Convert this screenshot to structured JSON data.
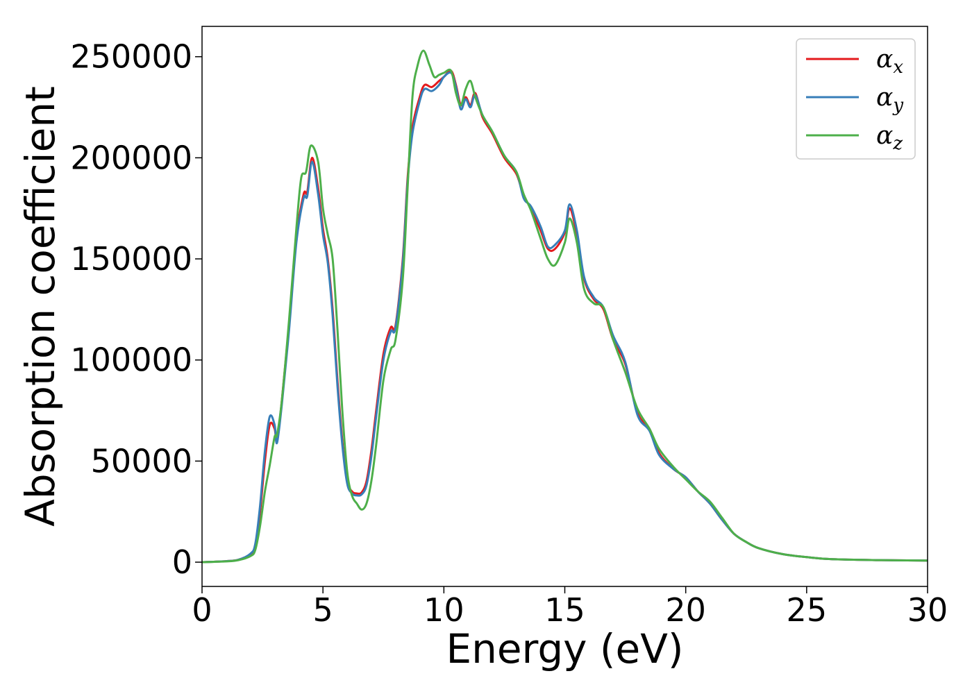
{
  "chart_data": {
    "type": "line",
    "xlabel": "Energy (eV)",
    "ylabel": "Absorption coefficient",
    "xlim": [
      0,
      30
    ],
    "ylim": [
      -12000,
      265000
    ],
    "xticks": [
      0,
      5,
      10,
      15,
      20,
      25,
      30
    ],
    "yticks": [
      0,
      50000,
      100000,
      150000,
      200000,
      250000
    ],
    "grid": false,
    "legend_position": "top-right",
    "series": [
      {
        "name": "α_x",
        "base": "α",
        "sub": "x",
        "color": "#e41a1c",
        "x": [
          0,
          1,
          1.5,
          2,
          2.2,
          2.4,
          2.6,
          2.8,
          3.0,
          3.1,
          3.3,
          3.6,
          3.9,
          4.2,
          4.35,
          4.55,
          4.8,
          5.0,
          5.2,
          5.4,
          5.6,
          5.8,
          6.0,
          6.2,
          6.4,
          6.6,
          6.8,
          7.0,
          7.2,
          7.5,
          7.8,
          8.0,
          8.3,
          8.5,
          8.7,
          9.0,
          9.2,
          9.5,
          9.8,
          10.0,
          10.3,
          10.5,
          10.7,
          10.9,
          11.1,
          11.3,
          11.6,
          12.0,
          12.5,
          13.0,
          13.3,
          13.6,
          14.0,
          14.3,
          14.6,
          15.0,
          15.2,
          15.5,
          15.8,
          16.2,
          16.6,
          17.0,
          17.5,
          18.0,
          18.5,
          18.9,
          19.5,
          20.0,
          20.5,
          21.0,
          21.5,
          22.0,
          22.5,
          23.0,
          24.0,
          25.0,
          26.0,
          28.0,
          30.0
        ],
        "y": [
          0,
          500,
          1200,
          4000,
          8000,
          25000,
          50000,
          68000,
          66000,
          60000,
          80000,
          118000,
          160000,
          182000,
          183000,
          200000,
          185000,
          165000,
          150000,
          125000,
          90000,
          60000,
          40000,
          35000,
          34000,
          34500,
          40000,
          55000,
          75000,
          103000,
          116000,
          117000,
          150000,
          190000,
          215000,
          230000,
          236000,
          235000,
          238000,
          240000,
          243000,
          236000,
          226000,
          230000,
          226000,
          232000,
          220000,
          212000,
          200000,
          192000,
          181000,
          175000,
          164000,
          155000,
          155000,
          163000,
          175000,
          162000,
          140000,
          130000,
          125000,
          110000,
          98000,
          74000,
          66000,
          54000,
          46000,
          42000,
          35000,
          29000,
          21000,
          14000,
          10000,
          7000,
          4000,
          2500,
          1500,
          1000,
          800
        ]
      },
      {
        "name": "α_y",
        "base": "α",
        "sub": "y",
        "color": "#377eb8",
        "x": [
          0,
          1,
          1.5,
          2,
          2.2,
          2.4,
          2.6,
          2.8,
          3.0,
          3.1,
          3.3,
          3.6,
          3.9,
          4.2,
          4.35,
          4.55,
          4.8,
          5.0,
          5.2,
          5.4,
          5.6,
          5.8,
          6.0,
          6.2,
          6.4,
          6.6,
          6.8,
          7.0,
          7.2,
          7.5,
          7.8,
          8.0,
          8.3,
          8.5,
          8.7,
          9.0,
          9.2,
          9.5,
          9.8,
          10.0,
          10.3,
          10.5,
          10.7,
          10.9,
          11.1,
          11.3,
          11.6,
          12.0,
          12.5,
          13.0,
          13.3,
          13.6,
          14.0,
          14.3,
          14.6,
          15.0,
          15.2,
          15.5,
          15.8,
          16.2,
          16.6,
          17.0,
          17.5,
          18.0,
          18.5,
          18.9,
          19.5,
          20.0,
          20.5,
          21.0,
          21.5,
          22.0,
          22.5,
          23.0,
          24.0,
          25.0,
          26.0,
          28.0,
          30.0
        ],
        "y": [
          0,
          500,
          1200,
          4200,
          9000,
          28000,
          55000,
          72000,
          68000,
          59000,
          78000,
          115000,
          158000,
          180000,
          181000,
          198000,
          182000,
          162000,
          148000,
          122000,
          87000,
          58000,
          39000,
          34000,
          33000,
          33500,
          38000,
          52000,
          72000,
          100000,
          114000,
          116000,
          148000,
          188000,
          212000,
          228000,
          234000,
          233000,
          236000,
          240000,
          242000,
          235000,
          224000,
          229000,
          225000,
          231000,
          221000,
          213000,
          201000,
          193000,
          180000,
          176000,
          166000,
          156000,
          157000,
          164000,
          177000,
          164000,
          141000,
          131000,
          126000,
          112000,
          99000,
          73000,
          65000,
          53000,
          46000,
          42000,
          35000,
          29000,
          21000,
          14000,
          10000,
          7000,
          4000,
          2500,
          1500,
          1000,
          800
        ]
      },
      {
        "name": "α_z",
        "base": "α",
        "sub": "z",
        "color": "#4daf4a",
        "x": [
          0,
          1,
          1.5,
          2,
          2.2,
          2.4,
          2.6,
          2.8,
          3.0,
          3.1,
          3.3,
          3.6,
          3.9,
          4.1,
          4.3,
          4.5,
          4.8,
          5.0,
          5.2,
          5.4,
          5.6,
          5.8,
          6.0,
          6.2,
          6.4,
          6.6,
          6.8,
          7.0,
          7.2,
          7.5,
          7.8,
          8.0,
          8.3,
          8.5,
          8.7,
          8.9,
          9.15,
          9.4,
          9.6,
          9.8,
          10.0,
          10.3,
          10.5,
          10.7,
          10.9,
          11.1,
          11.3,
          11.6,
          12.0,
          12.5,
          13.0,
          13.3,
          13.6,
          14.0,
          14.3,
          14.6,
          15.0,
          15.2,
          15.5,
          15.8,
          16.2,
          16.6,
          17.0,
          17.5,
          18.0,
          18.5,
          18.9,
          19.5,
          20.0,
          20.5,
          21.0,
          21.5,
          22.0,
          22.5,
          23.0,
          24.0,
          25.0,
          26.0,
          28.0,
          30.0
        ],
        "y": [
          0,
          400,
          1000,
          3000,
          6000,
          18000,
          35000,
          48000,
          62000,
          63000,
          80000,
          120000,
          165000,
          190000,
          193000,
          206000,
          198000,
          175000,
          162000,
          150000,
          115000,
          75000,
          45000,
          33000,
          29000,
          26000,
          29000,
          40000,
          58000,
          90000,
          105000,
          110000,
          140000,
          185000,
          230000,
          245000,
          253000,
          246000,
          240000,
          241000,
          242000,
          243000,
          232000,
          226000,
          234000,
          238000,
          230000,
          221000,
          213000,
          201000,
          193000,
          182000,
          174000,
          160000,
          150000,
          147000,
          158000,
          170000,
          158000,
          135000,
          128000,
          126000,
          110000,
          94000,
          76000,
          66000,
          56000,
          47000,
          41000,
          35000,
          30000,
          22000,
          14000,
          10000,
          7000,
          4000,
          2500,
          1500,
          1000,
          800
        ]
      }
    ]
  }
}
